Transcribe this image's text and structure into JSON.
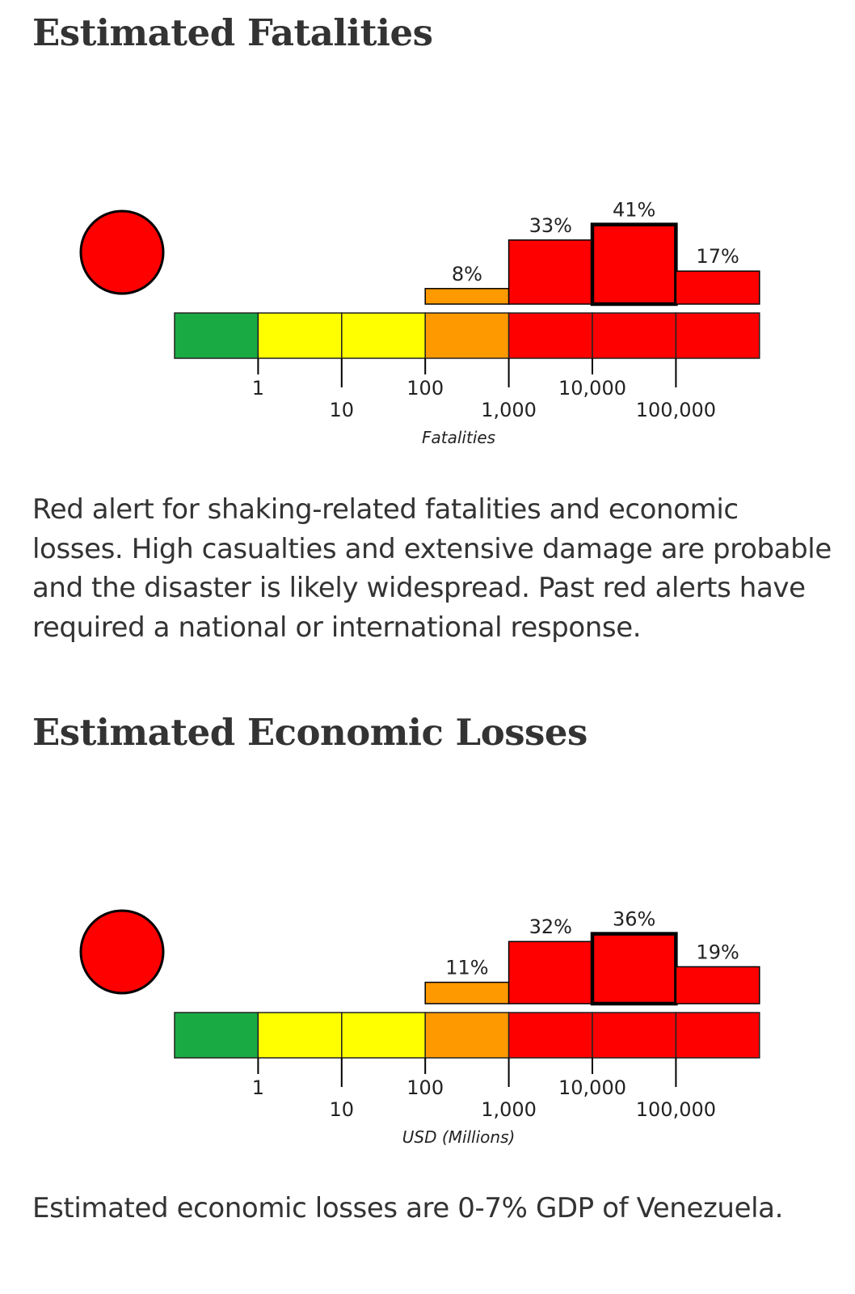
{
  "fatalities": {
    "title": "Estimated Fatalities",
    "description": "Red alert for shaking-related fatalities and economic losses. High casualties and extensive damage are probable and the disaster is likely widespread. Past red alerts have required a national or international response."
  },
  "economic": {
    "title": "Estimated Economic Losses",
    "description": "Estimated economic losses are 0-7% GDP of Venezuela."
  },
  "colors": {
    "green": "#1aaa44",
    "yellow": "#ffff00",
    "orange": "#ff9900",
    "red": "#ff0000"
  },
  "chart_data": [
    {
      "type": "bar",
      "alert_level": "red",
      "xlabel": "Fatalities",
      "tick_labels": [
        "1",
        "10",
        "100",
        "1,000",
        "10,000",
        "100,000"
      ],
      "bins": [
        "0",
        "1-10",
        "10-100",
        "100-1,000",
        "1,000-10,000",
        "10,000-100,000",
        "100,000+"
      ],
      "bin_colors": [
        "green",
        "yellow",
        "yellow",
        "orange",
        "red",
        "red",
        "red"
      ],
      "values": [
        0,
        0,
        0,
        8,
        33,
        41,
        17
      ],
      "value_labels": [
        "",
        "",
        "",
        "8%",
        "33%",
        "41%",
        "17%"
      ],
      "highlighted_bin": 5
    },
    {
      "type": "bar",
      "alert_level": "red",
      "xlabel": "USD (Millions)",
      "tick_labels": [
        "1",
        "10",
        "100",
        "1,000",
        "10,000",
        "100,000"
      ],
      "bins": [
        "0",
        "1-10",
        "10-100",
        "100-1,000",
        "1,000-10,000",
        "10,000-100,000",
        "100,000+"
      ],
      "bin_colors": [
        "green",
        "yellow",
        "yellow",
        "orange",
        "red",
        "red",
        "red"
      ],
      "values": [
        0,
        0,
        0,
        11,
        32,
        36,
        19
      ],
      "value_labels": [
        "",
        "",
        "",
        "11%",
        "32%",
        "36%",
        "19%"
      ],
      "highlighted_bin": 5
    }
  ]
}
